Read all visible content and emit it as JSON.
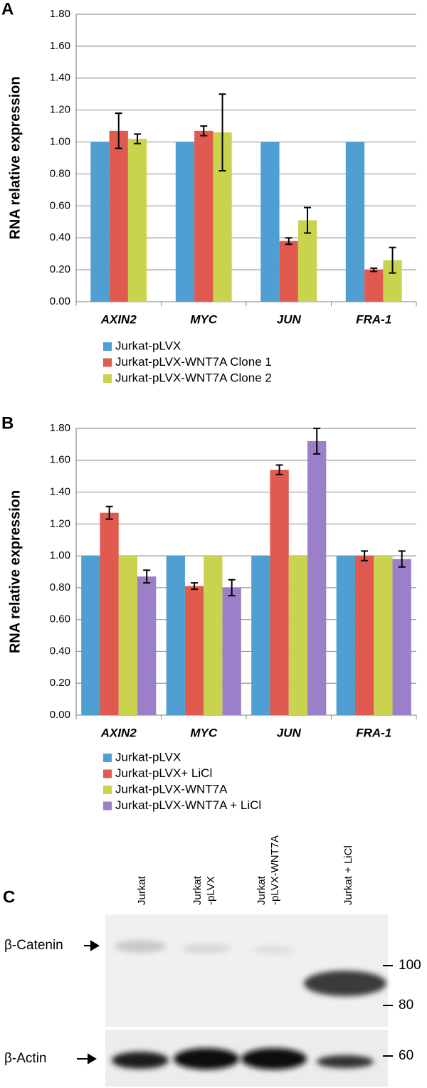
{
  "chart_data": [
    {
      "type": "bar",
      "panel": "A",
      "y_label": "RNA relative expression",
      "categories": [
        "AXIN2",
        "MYC",
        "JUN",
        "FRA-1"
      ],
      "series": [
        {
          "name": "Jurkat-pLVX",
          "color": "#4f9fd2",
          "values": [
            1.0,
            1.0,
            1.0,
            1.0
          ]
        },
        {
          "name": "Jurkat-pLVX-WNT7A Clone 1",
          "color": "#e05a4f",
          "values": [
            1.07,
            1.07,
            0.38,
            0.2
          ],
          "errors": [
            0.11,
            0.03,
            0.02,
            0.01
          ]
        },
        {
          "name": "Jurkat-pLVX-WNT7A Clone 2",
          "color": "#c9d34d",
          "values": [
            1.02,
            1.06,
            0.51,
            0.26
          ],
          "errors": [
            0.03,
            0.24,
            0.08,
            0.08
          ]
        }
      ],
      "ylim": [
        0,
        1.8
      ],
      "yticks": [
        {
          "value": 0,
          "label": "0.00"
        },
        {
          "value": 0.2,
          "label": "0.20"
        },
        {
          "value": 0.4,
          "label": "0.40"
        },
        {
          "value": 0.6,
          "label": "0.60"
        },
        {
          "value": 0.8,
          "label": "0.80"
        },
        {
          "value": 1.0,
          "label": "1.00"
        },
        {
          "value": 1.2,
          "label": "1.20"
        },
        {
          "value": 1.4,
          "label": "1.40"
        },
        {
          "value": 1.6,
          "label": "1.60"
        },
        {
          "value": 1.8,
          "label": "1.80"
        }
      ],
      "grid": true
    },
    {
      "type": "bar",
      "panel": "B",
      "y_label": "RNA relative expression",
      "categories": [
        "AXIN2",
        "MYC",
        "JUN",
        "FRA-1"
      ],
      "series": [
        {
          "name": "Jurkat-pLVX",
          "color": "#4f9fd2",
          "values": [
            1.0,
            1.0,
            1.0,
            1.0
          ]
        },
        {
          "name": "Jurkat-pLVX+ LiCl",
          "color": "#e05a4f",
          "values": [
            1.27,
            0.81,
            1.54,
            1.0
          ],
          "errors": [
            0.04,
            0.02,
            0.03,
            0.03
          ]
        },
        {
          "name": "Jurkat-pLVX-WNT7A",
          "color": "#c9d34d",
          "values": [
            1.0,
            1.0,
            1.0,
            1.0
          ]
        },
        {
          "name": "Jurkat-pLVX-WNT7A + LiCl",
          "color": "#9b7fc8",
          "values": [
            0.87,
            0.8,
            1.72,
            0.98
          ],
          "errors": [
            0.04,
            0.05,
            0.08,
            0.05
          ]
        }
      ],
      "ylim": [
        0,
        1.8
      ],
      "yticks": [
        {
          "value": 0,
          "label": "0.00"
        },
        {
          "value": 0.2,
          "label": "0.20"
        },
        {
          "value": 0.4,
          "label": "0.40"
        },
        {
          "value": 0.6,
          "label": "0.60"
        },
        {
          "value": 0.8,
          "label": "0.80"
        },
        {
          "value": 1.0,
          "label": "1.00"
        },
        {
          "value": 1.2,
          "label": "1.20"
        },
        {
          "value": 1.4,
          "label": "1.40"
        },
        {
          "value": 1.6,
          "label": "1.60"
        },
        {
          "value": 1.8,
          "label": "1.80"
        }
      ],
      "grid": true
    }
  ],
  "blot": {
    "panel": "C",
    "lanes": [
      [
        "Jurkat"
      ],
      [
        "Jurkat",
        "-pLVX"
      ],
      [
        "Jurkat",
        "-pLVX-WNT7A"
      ],
      [
        "Jurkat + LiCl"
      ]
    ],
    "rows": [
      "β-Catenin",
      "β-Actin"
    ],
    "markers": [
      "100",
      "80",
      "60"
    ]
  }
}
